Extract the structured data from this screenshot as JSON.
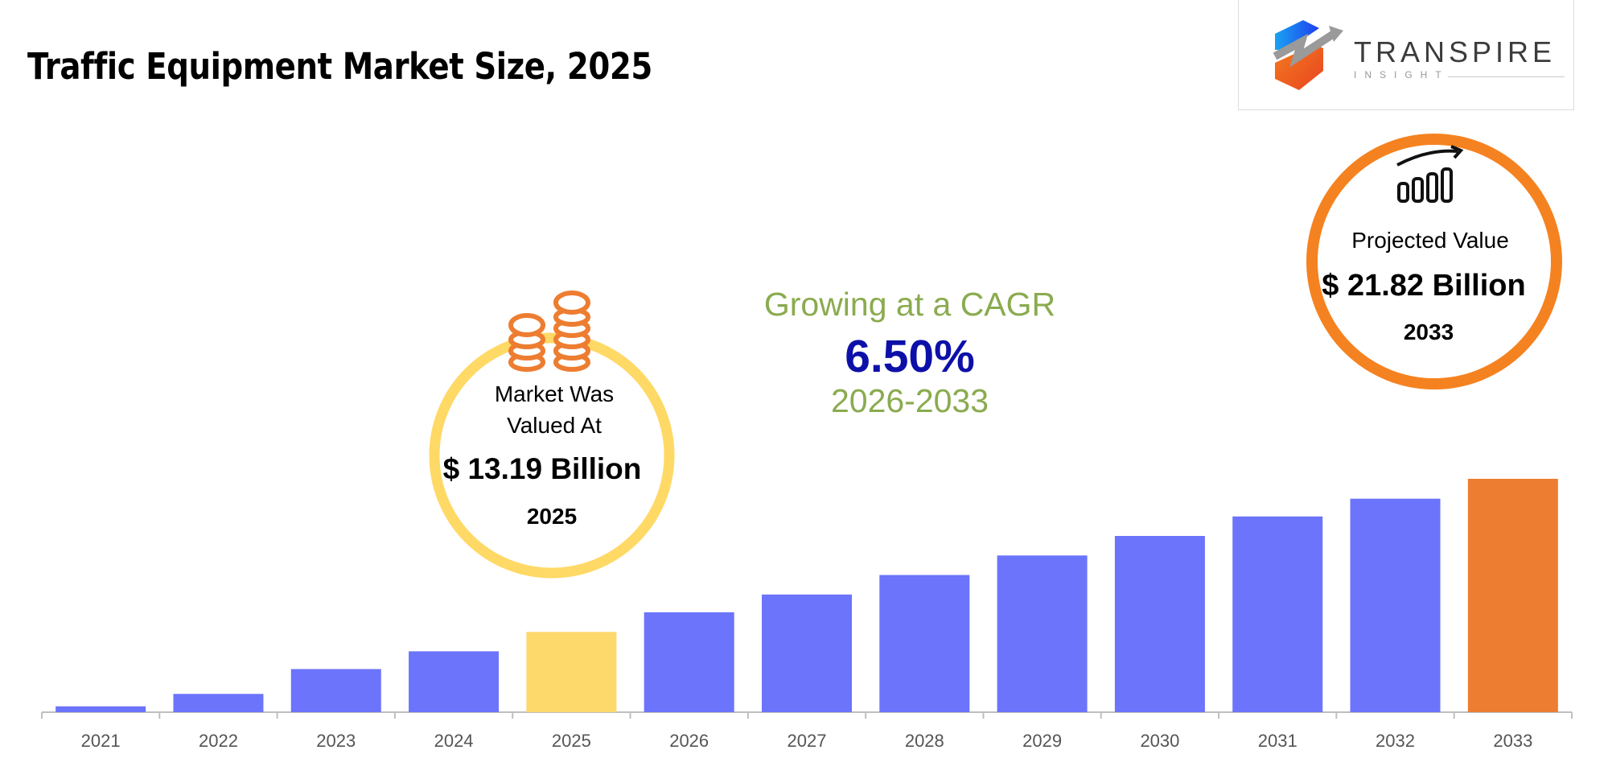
{
  "title": "Traffic Equipment Market Size, 2025",
  "logo": {
    "name": "TRANSPIRE",
    "sub": "INSIGHT"
  },
  "cagr": {
    "label": "Growing at a CAGR",
    "value": "6.50%",
    "period": "2026-2033"
  },
  "valued_callout": {
    "line1": "Market Was",
    "line2": "Valued At",
    "value": "$ 13.19 Billion",
    "year": "2025",
    "icon": "coins-icon"
  },
  "projected_callout": {
    "label": "Projected Value",
    "value": "$ 21.82 Billion",
    "year": "2033",
    "icon": "growth-bars-icon"
  },
  "colors": {
    "bar": "#6B74FB",
    "base_year": "#FDD86B",
    "final_year": "#ED7D31",
    "cagr_text": "#8AAB4F",
    "cagr_value": "#0D10A8",
    "valued_ring": "#FFD966",
    "projected_ring": "#F58220"
  },
  "chart_data": {
    "type": "bar",
    "title": "Traffic Equipment Market Size, 2025",
    "xlabel": "",
    "ylabel": "",
    "unit": "USD Billion",
    "grid": false,
    "categories": [
      "2021",
      "2022",
      "2023",
      "2024",
      "2025",
      "2026",
      "2027",
      "2028",
      "2029",
      "2030",
      "2031",
      "2032",
      "2033"
    ],
    "values": [
      9.0,
      9.7,
      11.1,
      12.1,
      13.19,
      14.3,
      15.3,
      16.4,
      17.5,
      18.6,
      19.7,
      20.7,
      21.82
    ],
    "highlight": {
      "2025": "base_year",
      "2033": "final_year"
    }
  }
}
